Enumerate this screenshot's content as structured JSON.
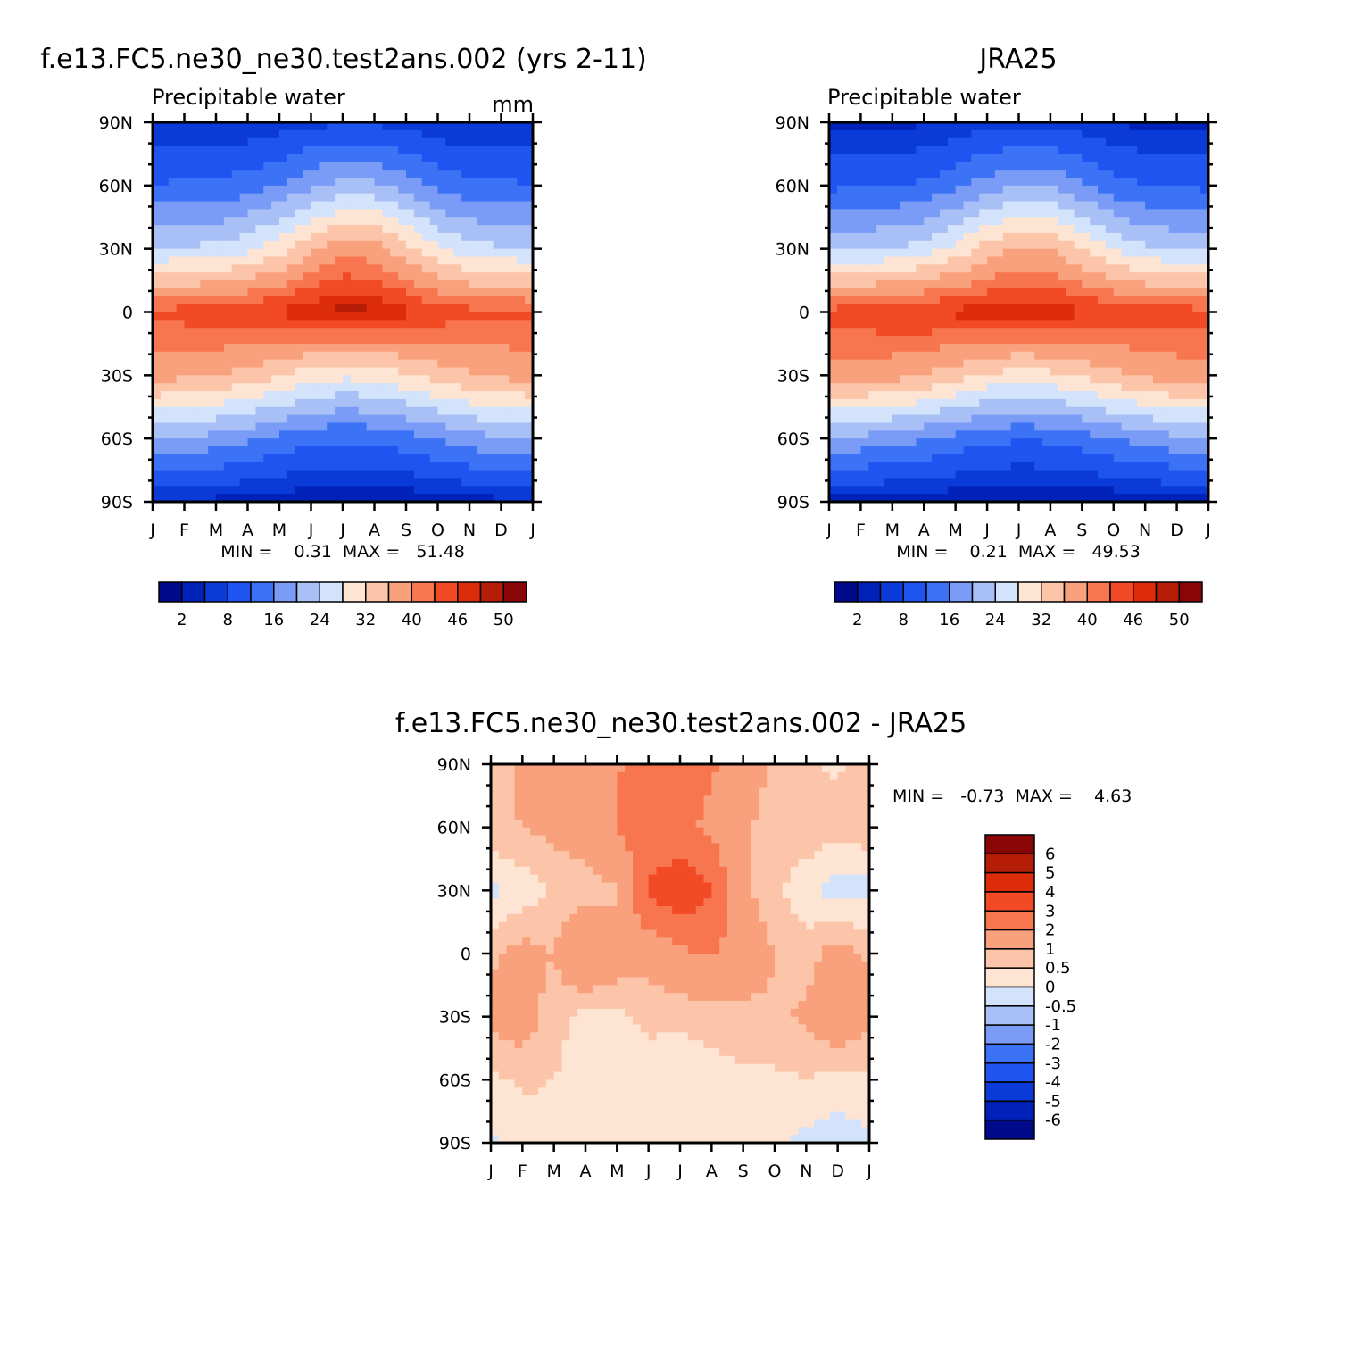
{
  "chart_data": [
    {
      "type": "heatmap",
      "title": "f.e13.FC5.ne30_ne30.test2ans.002 (yrs 2-11)",
      "subtitle": "Precipitable water",
      "units": "mm",
      "xlabel": "",
      "ylabel": "",
      "x_ticks": [
        "J",
        "F",
        "M",
        "A",
        "M",
        "J",
        "J",
        "A",
        "S",
        "O",
        "N",
        "D",
        "J"
      ],
      "y_ticks": [
        "90N",
        "60N",
        "30N",
        "0",
        "30S",
        "60S",
        "90S"
      ],
      "ylim": [
        -90,
        90
      ],
      "stats": "MIN =    0.31  MAX =   51.48",
      "colorbar_labels": [
        "2",
        "8",
        "16",
        "24",
        "32",
        "40",
        "46",
        "50"
      ],
      "colors": [
        "#000a8a",
        "#0022b8",
        "#0a3ad8",
        "#1e55f0",
        "#3c72f5",
        "#7a9cf6",
        "#a9c0f7",
        "#d3e3fb",
        "#fde4d3",
        "#fcc4a8",
        "#f9a07c",
        "#f7754f",
        "#f24a24",
        "#dc2c0a",
        "#b51d06",
        "#8a0606"
      ],
      "levels": [
        2,
        5,
        8,
        12,
        16,
        20,
        24,
        28,
        32,
        36,
        40,
        43,
        46,
        48,
        50
      ],
      "z": [
        [
          4.7,
          4.7,
          4.8,
          5.2,
          6.0,
          7.0,
          7.5,
          7.3,
          6.4,
          5.4,
          4.8,
          4.6,
          4.7
        ],
        [
          12.4,
          12.6,
          13.0,
          14.0,
          16.1,
          19.3,
          21.6,
          21.2,
          18.1,
          14.8,
          13.1,
          12.6,
          12.4
        ],
        [
          24.2,
          24.4,
          25.1,
          27.0,
          30.4,
          35.1,
          38.5,
          37.9,
          33.4,
          28.4,
          25.6,
          24.5,
          24.2
        ],
        [
          43.6,
          44.4,
          45.1,
          45.7,
          46.6,
          48.0,
          49.0,
          48.6,
          47.0,
          45.2,
          44.2,
          43.8,
          43.6
        ],
        [
          37.6,
          36.9,
          36.2,
          34.5,
          32.4,
          30.0,
          28.9,
          29.4,
          31.5,
          33.9,
          35.6,
          36.9,
          37.6
        ],
        [
          20.3,
          19.6,
          18.6,
          17.0,
          15.1,
          13.3,
          12.6,
          13.0,
          14.4,
          16.5,
          18.4,
          19.8,
          20.3
        ],
        [
          4.5,
          4.4,
          4.1,
          3.6,
          3.0,
          2.6,
          2.5,
          2.5,
          2.7,
          3.0,
          3.6,
          4.2,
          4.5
        ]
      ]
    },
    {
      "type": "heatmap",
      "title": "JRA25",
      "subtitle": "Precipitable water",
      "units": "",
      "xlabel": "",
      "ylabel": "",
      "x_ticks": [
        "J",
        "F",
        "M",
        "A",
        "M",
        "J",
        "J",
        "A",
        "S",
        "O",
        "N",
        "D",
        "J"
      ],
      "y_ticks": [
        "90N",
        "60N",
        "30N",
        "0",
        "30S",
        "60S",
        "90S"
      ],
      "ylim": [
        -90,
        90
      ],
      "stats": "MIN =    0.21  MAX =   49.53",
      "colorbar_labels": [
        "2",
        "8",
        "16",
        "24",
        "32",
        "40",
        "46",
        "50"
      ],
      "colors": [
        "#000a8a",
        "#0022b8",
        "#0a3ad8",
        "#1e55f0",
        "#3c72f5",
        "#7a9cf6",
        "#a9c0f7",
        "#d3e3fb",
        "#fde4d3",
        "#fcc4a8",
        "#f9a07c",
        "#f7754f",
        "#f24a24",
        "#dc2c0a",
        "#b51d06",
        "#8a0606"
      ],
      "levels": [
        2,
        5,
        8,
        12,
        16,
        20,
        24,
        28,
        32,
        36,
        40,
        43,
        46,
        48,
        50
      ],
      "z": [
        [
          3.9,
          4.0,
          4.2,
          4.6,
          5.4,
          6.4,
          6.9,
          6.7,
          5.8,
          4.8,
          4.2,
          4.0,
          3.9
        ],
        [
          11.2,
          11.4,
          11.8,
          12.8,
          14.8,
          17.8,
          20.0,
          19.6,
          16.7,
          13.6,
          12.0,
          11.4,
          11.2
        ],
        [
          23.4,
          23.6,
          24.1,
          25.8,
          29.1,
          33.6,
          36.4,
          35.9,
          31.8,
          27.2,
          24.6,
          23.6,
          23.4
        ],
        [
          44.2,
          45.0,
          45.8,
          46.3,
          46.8,
          47.4,
          47.9,
          47.6,
          46.6,
          45.5,
          44.8,
          44.4,
          44.2
        ],
        [
          38.7,
          38.1,
          37.4,
          35.9,
          33.9,
          31.5,
          30.4,
          30.9,
          32.9,
          35.1,
          36.8,
          38.1,
          38.7
        ],
        [
          19.6,
          19.0,
          18.1,
          16.6,
          14.8,
          13.1,
          12.4,
          12.8,
          14.1,
          16.1,
          17.9,
          19.2,
          19.6
        ],
        [
          3.6,
          3.5,
          3.3,
          2.9,
          2.5,
          2.2,
          2.1,
          2.1,
          2.3,
          2.5,
          3.0,
          3.4,
          3.6
        ]
      ]
    },
    {
      "type": "heatmap",
      "title": "f.e13.FC5.ne30_ne30.test2ans.002 - JRA25",
      "subtitle": "",
      "units": "",
      "xlabel": "",
      "ylabel": "",
      "x_ticks": [
        "J",
        "F",
        "M",
        "A",
        "M",
        "J",
        "J",
        "A",
        "S",
        "O",
        "N",
        "D",
        "J"
      ],
      "y_ticks": [
        "90N",
        "60N",
        "30N",
        "0",
        "30S",
        "60S",
        "90S"
      ],
      "ylim": [
        -90,
        90
      ],
      "stats": "MIN =   -0.73  MAX =    4.63",
      "colorbar_labels": [
        "6",
        "5",
        "4",
        "3",
        "2",
        "1",
        "0.5",
        "0",
        "-0.5",
        "-1",
        "-2",
        "-3",
        "-4",
        "-5",
        "-6"
      ],
      "colors": [
        "#000a8a",
        "#0022b8",
        "#0a3ad8",
        "#1e55f0",
        "#3c72f5",
        "#7a9cf6",
        "#a9c0f7",
        "#d3e3fb",
        "#fde4d3",
        "#fcc4a8",
        "#f9a07c",
        "#f7754f",
        "#f24a24",
        "#dc2c0a",
        "#b51d06",
        "#8a0606"
      ],
      "levels": [
        -6,
        -5,
        -4,
        -3,
        -2,
        -1,
        -0.5,
        0,
        0.5,
        1,
        2,
        3,
        4,
        5,
        6
      ],
      "z": [
        [
          0.8,
          1.1,
          1.0,
          1.3,
          1.9,
          2.5,
          2.7,
          2.1,
          1.6,
          0.8,
          0.6,
          0.4,
          0.8
        ],
        [
          0.9,
          1.0,
          1.2,
          1.3,
          2.1,
          2.3,
          2.2,
          1.8,
          1.1,
          0.7,
          0.8,
          0.7,
          0.9
        ],
        [
          -0.2,
          0.2,
          0.6,
          0.7,
          0.9,
          3.2,
          3.8,
          3.0,
          1.2,
          0.6,
          0.2,
          -0.3,
          -0.2
        ],
        [
          0.9,
          1.2,
          1.0,
          2.1,
          1.4,
          1.3,
          1.8,
          2.1,
          1.5,
          1.0,
          0.7,
          1.3,
          0.9
        ],
        [
          1.2,
          1.4,
          0.7,
          0.3,
          0.4,
          0.6,
          0.6,
          0.7,
          0.8,
          0.9,
          1.1,
          1.7,
          1.2
        ],
        [
          0.4,
          0.6,
          0.5,
          0.3,
          0.3,
          0.3,
          0.2,
          0.3,
          0.4,
          0.4,
          0.5,
          0.3,
          0.4
        ],
        [
          -0.1,
          0.2,
          0.3,
          0.3,
          0.2,
          0.2,
          0.2,
          0.2,
          0.2,
          0.1,
          -0.2,
          -0.3,
          -0.1
        ]
      ]
    }
  ]
}
